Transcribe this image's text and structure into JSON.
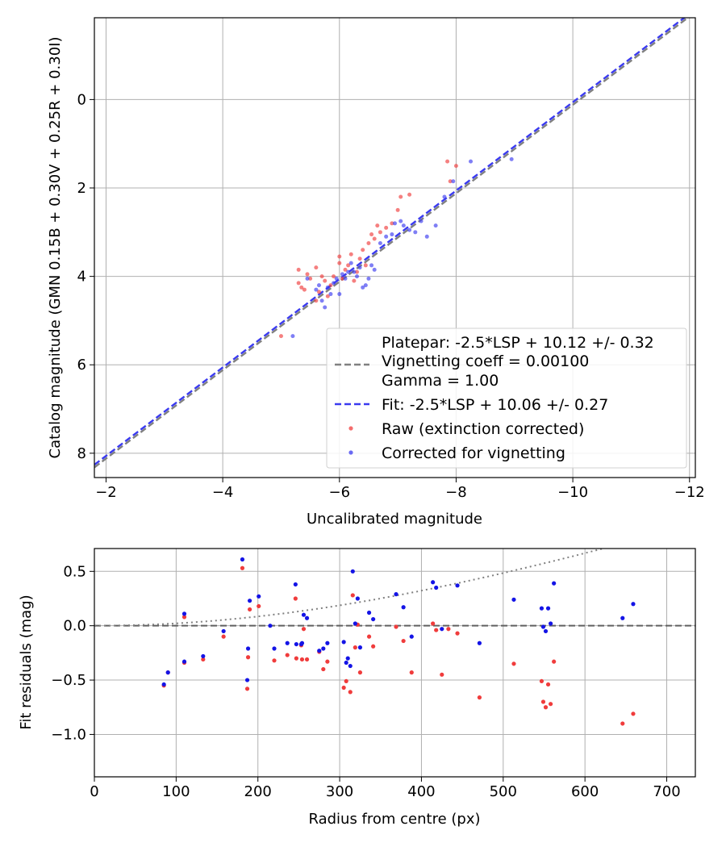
{
  "chart_data": [
    {
      "type": "scatter",
      "xlabel": "Uncalibrated magnitude",
      "ylabel": "Catalog magnitude (GMN 0.15B + 0.30V + 0.25R + 0.30I)",
      "xlim": [
        -1.8,
        -12.1
      ],
      "ylim": [
        8.55,
        -1.85
      ],
      "xticks": [
        -2,
        -4,
        -6,
        -8,
        -10,
        -12
      ],
      "xtick_labels": [
        "−2",
        "−4",
        "−6",
        "−8",
        "−10",
        "−12"
      ],
      "yticks": [
        0,
        2,
        4,
        6,
        8
      ],
      "ytick_labels": [
        "0",
        "2",
        "4",
        "6",
        "8"
      ],
      "grid": true,
      "legend_position": "bottom-right",
      "legend": [
        {
          "label": "Platepar: -2.5*LSP + 10.12 +/- 0.32",
          "style": "none"
        },
        {
          "label": "Vignetting coeff = 0.00100",
          "style": "grey-dashed-line"
        },
        {
          "label": "Gamma = 1.00",
          "style": "none"
        },
        {
          "label": "Fit: -2.5*LSP + 10.06 +/- 0.27",
          "style": "blue-dashed-line"
        },
        {
          "label": "Raw (extinction corrected)",
          "style": "red-dot"
        },
        {
          "label": "Corrected for vignetting",
          "style": "blue-dot"
        }
      ],
      "lines": [
        {
          "name": "Platepar",
          "slope": 1,
          "intercept": 10.12,
          "color": "#808080",
          "style": "dashed"
        },
        {
          "name": "Fit",
          "slope": 1,
          "intercept": 10.06,
          "color": "#3a3af0",
          "style": "dashed"
        }
      ],
      "series": [
        {
          "name": "Raw (extinction corrected)",
          "color": "#f03c3c",
          "points": [
            [
              -5.0,
              5.35
            ],
            [
              -5.3,
              3.85
            ],
            [
              -5.3,
              4.15
            ],
            [
              -5.35,
              4.25
            ],
            [
              -5.4,
              4.3
            ],
            [
              -5.45,
              3.95
            ],
            [
              -5.5,
              4.05
            ],
            [
              -5.6,
              4.55
            ],
            [
              -5.6,
              3.8
            ],
            [
              -5.65,
              4.35
            ],
            [
              -5.7,
              4.0
            ],
            [
              -5.75,
              4.1
            ],
            [
              -5.8,
              4.45
            ],
            [
              -5.85,
              4.2
            ],
            [
              -5.9,
              4.0
            ],
            [
              -6.0,
              3.55
            ],
            [
              -6.0,
              3.7
            ],
            [
              -6.05,
              4.05
            ],
            [
              -6.1,
              3.85
            ],
            [
              -6.15,
              3.75
            ],
            [
              -6.2,
              3.5
            ],
            [
              -6.25,
              4.1
            ],
            [
              -6.3,
              3.9
            ],
            [
              -6.35,
              3.6
            ],
            [
              -6.4,
              3.4
            ],
            [
              -6.45,
              3.75
            ],
            [
              -6.5,
              3.25
            ],
            [
              -6.55,
              3.05
            ],
            [
              -6.6,
              3.15
            ],
            [
              -6.65,
              2.85
            ],
            [
              -6.7,
              3.0
            ],
            [
              -6.8,
              2.9
            ],
            [
              -6.9,
              2.8
            ],
            [
              -7.0,
              2.5
            ],
            [
              -7.05,
              2.2
            ],
            [
              -7.2,
              2.15
            ],
            [
              -7.9,
              1.85
            ],
            [
              -7.85,
              1.4
            ],
            [
              -8.0,
              1.5
            ]
          ]
        },
        {
          "name": "Corrected for vignetting",
          "color": "#3a3af0",
          "points": [
            [
              -5.2,
              5.35
            ],
            [
              -5.45,
              4.05
            ],
            [
              -5.6,
              4.3
            ],
            [
              -5.65,
              4.2
            ],
            [
              -5.7,
              4.55
            ],
            [
              -5.75,
              4.7
            ],
            [
              -5.8,
              4.25
            ],
            [
              -5.85,
              4.4
            ],
            [
              -5.9,
              4.15
            ],
            [
              -5.95,
              4.05
            ],
            [
              -6.0,
              4.4
            ],
            [
              -6.05,
              3.95
            ],
            [
              -6.1,
              4.05
            ],
            [
              -6.15,
              3.9
            ],
            [
              -6.2,
              3.7
            ],
            [
              -6.25,
              3.9
            ],
            [
              -6.3,
              4.0
            ],
            [
              -6.35,
              3.8
            ],
            [
              -6.4,
              4.25
            ],
            [
              -6.45,
              4.2
            ],
            [
              -6.5,
              4.05
            ],
            [
              -6.55,
              3.75
            ],
            [
              -6.6,
              3.85
            ],
            [
              -6.7,
              3.25
            ],
            [
              -6.8,
              3.1
            ],
            [
              -6.9,
              3.05
            ],
            [
              -6.95,
              2.8
            ],
            [
              -7.05,
              2.75
            ],
            [
              -7.1,
              2.85
            ],
            [
              -7.2,
              2.95
            ],
            [
              -7.3,
              3.0
            ],
            [
              -7.4,
              2.75
            ],
            [
              -7.5,
              3.1
            ],
            [
              -7.65,
              2.85
            ],
            [
              -7.8,
              2.2
            ],
            [
              -7.95,
              1.85
            ],
            [
              -8.25,
              1.4
            ],
            [
              -8.95,
              1.35
            ]
          ]
        }
      ]
    },
    {
      "type": "scatter",
      "xlabel": "Radius from centre (px)",
      "ylabel": "Fit residuals (mag)",
      "xlim": [
        0,
        735
      ],
      "ylim": [
        -1.39,
        0.71
      ],
      "xticks": [
        0,
        100,
        200,
        300,
        400,
        500,
        600,
        700
      ],
      "xtick_labels": [
        "0",
        "100",
        "200",
        "300",
        "400",
        "500",
        "600",
        "700"
      ],
      "yticks": [
        0.5,
        0.0,
        -0.5,
        -1.0
      ],
      "ytick_labels": [
        "0.5",
        "0.0",
        "−0.5",
        "−1.0"
      ],
      "grid": true,
      "lines": [
        {
          "name": "zero",
          "type": "horizontal",
          "y": 0,
          "color": "#606060",
          "style": "dashed"
        },
        {
          "name": "vignetting model",
          "type": "curve",
          "formula": "-2.5*log10(cos(arctan(0.001*r))^4)",
          "color": "#808080",
          "style": "dotted"
        }
      ],
      "series": [
        {
          "name": "Raw (extinction corrected)",
          "color": "#f03c3c",
          "points": [
            [
              85,
              -0.55
            ],
            [
              90,
              -0.43
            ],
            [
              110,
              -0.34
            ],
            [
              110,
              0.08
            ],
            [
              133,
              -0.31
            ],
            [
              158,
              -0.1
            ],
            [
              181,
              0.53
            ],
            [
              187,
              -0.58
            ],
            [
              188,
              -0.29
            ],
            [
              190,
              0.15
            ],
            [
              201,
              0.18
            ],
            [
              220,
              -0.32
            ],
            [
              236,
              -0.27
            ],
            [
              246,
              0.25
            ],
            [
              247,
              -0.3
            ],
            [
              253,
              -0.18
            ],
            [
              254,
              -0.31
            ],
            [
              256,
              -0.03
            ],
            [
              260,
              -0.31
            ],
            [
              275,
              -0.24
            ],
            [
              280,
              -0.4
            ],
            [
              285,
              -0.33
            ],
            [
              305,
              -0.57
            ],
            [
              308,
              -0.51
            ],
            [
              313,
              -0.61
            ],
            [
              316,
              0.28
            ],
            [
              319,
              -0.2
            ],
            [
              322,
              0.01
            ],
            [
              325,
              -0.43
            ],
            [
              336,
              -0.1
            ],
            [
              341,
              -0.19
            ],
            [
              369,
              -0.01
            ],
            [
              378,
              -0.14
            ],
            [
              388,
              -0.43
            ],
            [
              414,
              0.02
            ],
            [
              418,
              -0.04
            ],
            [
              425,
              -0.45
            ],
            [
              433,
              -0.03
            ],
            [
              444,
              -0.07
            ],
            [
              471,
              -0.66
            ],
            [
              513,
              -0.35
            ],
            [
              547,
              -0.51
            ],
            [
              549,
              -0.7
            ],
            [
              552,
              -0.75
            ],
            [
              555,
              -0.54
            ],
            [
              558,
              -0.72
            ],
            [
              562,
              -0.33
            ],
            [
              646,
              -0.9
            ],
            [
              659,
              -0.81
            ]
          ]
        },
        {
          "name": "Corrected for vignetting",
          "color": "#1414e6",
          "points": [
            [
              85,
              -0.54
            ],
            [
              90,
              -0.43
            ],
            [
              110,
              -0.33
            ],
            [
              110,
              0.11
            ],
            [
              133,
              -0.28
            ],
            [
              158,
              -0.05
            ],
            [
              181,
              0.61
            ],
            [
              187,
              -0.5
            ],
            [
              188,
              -0.21
            ],
            [
              190,
              0.23
            ],
            [
              201,
              0.27
            ],
            [
              215,
              0.0
            ],
            [
              220,
              -0.21
            ],
            [
              236,
              -0.16
            ],
            [
              246,
              0.38
            ],
            [
              247,
              -0.17
            ],
            [
              253,
              -0.17
            ],
            [
              254,
              -0.16
            ],
            [
              256,
              0.1
            ],
            [
              260,
              0.07
            ],
            [
              275,
              -0.23
            ],
            [
              280,
              -0.21
            ],
            [
              285,
              -0.16
            ],
            [
              305,
              -0.15
            ],
            [
              308,
              -0.34
            ],
            [
              310,
              -0.3
            ],
            [
              313,
              -0.37
            ],
            [
              316,
              0.5
            ],
            [
              319,
              0.02
            ],
            [
              322,
              0.25
            ],
            [
              325,
              -0.2
            ],
            [
              336,
              0.12
            ],
            [
              341,
              0.06
            ],
            [
              369,
              0.29
            ],
            [
              378,
              0.17
            ],
            [
              388,
              -0.1
            ],
            [
              414,
              0.4
            ],
            [
              418,
              0.35
            ],
            [
              425,
              -0.03
            ],
            [
              444,
              0.37
            ],
            [
              471,
              -0.16
            ],
            [
              513,
              0.24
            ],
            [
              547,
              0.16
            ],
            [
              549,
              -0.01
            ],
            [
              552,
              -0.05
            ],
            [
              555,
              0.16
            ],
            [
              558,
              0.02
            ],
            [
              562,
              0.39
            ],
            [
              646,
              0.07
            ],
            [
              659,
              0.2
            ]
          ]
        }
      ]
    }
  ]
}
